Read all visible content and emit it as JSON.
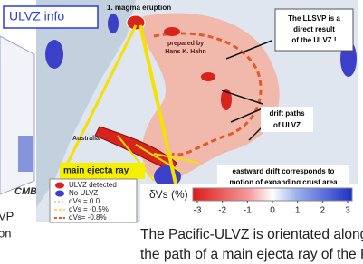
{
  "left_panel": {
    "label_cmb": "CMB",
    "fragment_1": "VP",
    "fragment_2": "on"
  },
  "info_box": {
    "title": "ULVZ info"
  },
  "annotations": {
    "magma_eruption": "1. magma  eruption",
    "llsvp_note": [
      "The LLSVP  is a",
      "direct  result",
      "of the ULVZ !"
    ],
    "prepared_by": [
      "prepared by",
      "Hans K. Hahn"
    ],
    "drift_paths": [
      "drift paths",
      "of ULVZ"
    ],
    "australia": "Australia",
    "main_ejecta_ray": "main ejecta ray",
    "eastward_drift": [
      "eastward drift corresponds to",
      "motion of expanding crust area"
    ]
  },
  "legend": {
    "items": [
      "ULVZ detected",
      "No ULVZ",
      "dVs = 0.0",
      "dVs = -0.5%",
      "dVs= -0.8%"
    ]
  },
  "colorbar": {
    "title": "δVs (%)",
    "lim": [
      -3,
      3
    ],
    "ticks": [
      -3,
      -2,
      -1,
      0,
      1,
      2,
      3
    ]
  },
  "caption": [
    "The  Pacific-ULVZ is orientated along",
    "the path of a main ejecta ray of the PTI"
  ]
}
